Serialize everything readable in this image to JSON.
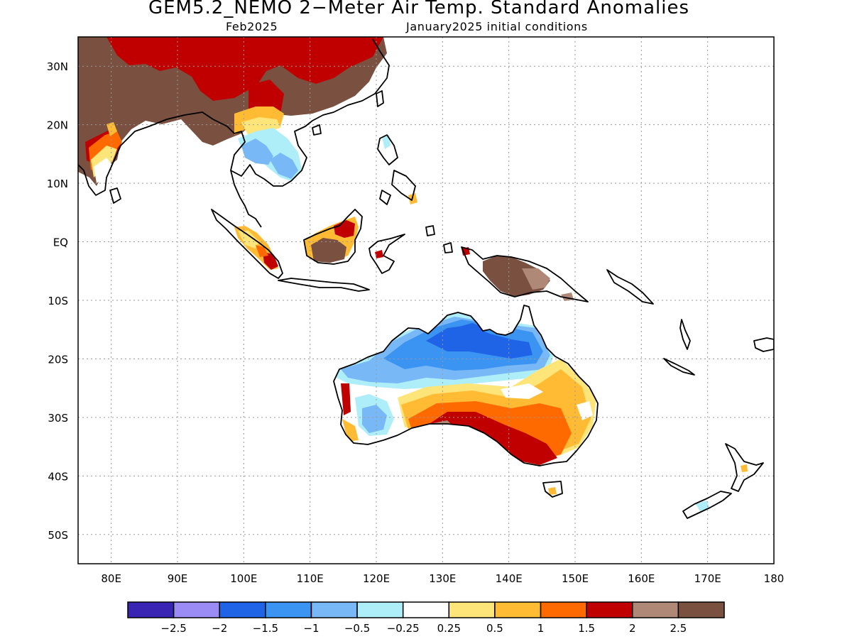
{
  "title": "GEM5.2_NEMO 2−Meter Air Temp. Standard Anomalies",
  "forecast_month": "Feb2025",
  "init_conditions": "January2025 initial conditions",
  "map": {
    "lon_range": [
      75,
      180
    ],
    "lat_range": [
      -55,
      35
    ],
    "lon_ticks": [
      "80E",
      "90E",
      "100E",
      "110E",
      "120E",
      "130E",
      "140E",
      "150E",
      "160E",
      "170E",
      "180"
    ],
    "lat_ticks": [
      "30N",
      "20N",
      "10N",
      "EQ",
      "10S",
      "20S",
      "30S",
      "40S",
      "50S"
    ],
    "gridlines": "dotted",
    "coastline_color": "#000000"
  },
  "colorbar": {
    "bins": [
      {
        "color": "#3a24b4"
      },
      {
        "color": "#9b8bf5"
      },
      {
        "color": "#1f63e6"
      },
      {
        "color": "#3c94f2"
      },
      {
        "color": "#78b8f7"
      },
      {
        "color": "#aeeef9"
      },
      {
        "color": "#ffffff"
      },
      {
        "color": "#fee57a"
      },
      {
        "color": "#ffbb33"
      },
      {
        "color": "#ff6a00"
      },
      {
        "color": "#c00000"
      },
      {
        "color": "#b08878"
      },
      {
        "color": "#7a5040"
      }
    ],
    "labels": [
      "−2.5",
      "−2",
      "−1.5",
      "−1",
      "−0.5",
      "−0.25",
      "0.25",
      "0.5",
      "1",
      "1.5",
      "2",
      "2.5"
    ]
  },
  "regions": [
    {
      "name": "South Asia / Himalaya",
      "anomaly_level": "above 2.5",
      "color": "#7a5040"
    },
    {
      "name": "Southern China",
      "anomaly_level": "1.5 to 2",
      "color": "#c00000"
    },
    {
      "name": "Indochina",
      "anomaly_level": "-1 to -0.5",
      "color": "#78b8f7"
    },
    {
      "name": "Borneo",
      "anomaly_level": "above 2.5",
      "color": "#7a5040"
    },
    {
      "name": "New Guinea",
      "anomaly_level": "above 2.5",
      "color": "#7a5040"
    },
    {
      "name": "Northern Australia",
      "anomaly_level": "-1.5 to -1",
      "color": "#3c94f2"
    },
    {
      "name": "Southeast Australia",
      "anomaly_level": "1.5 to 2",
      "color": "#c00000"
    },
    {
      "name": "Eastern Australia",
      "anomaly_level": "0.25 to 0.5",
      "color": "#fee57a"
    }
  ]
}
